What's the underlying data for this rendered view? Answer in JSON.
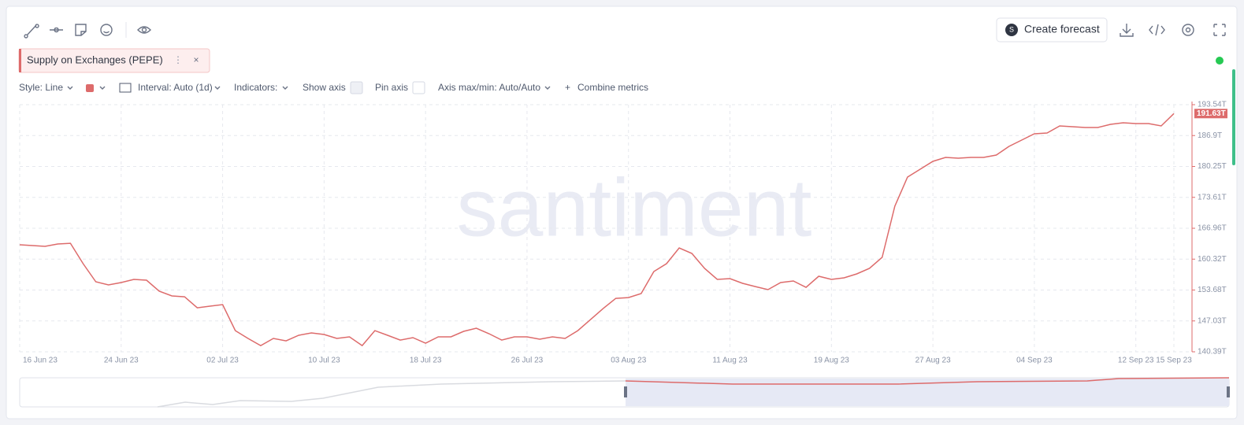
{
  "toolbar": {
    "create_forecast": "Create forecast"
  },
  "settings": {
    "style": "Style: Line",
    "interval": "Interval: Auto (1d)",
    "indicators": "Indicators:",
    "show_axis": "Show axis",
    "pin_axis": "Pin axis",
    "axis_range": "Axis max/min: Auto/Auto",
    "combine": "Combine metrics"
  },
  "watermark": "santiment",
  "chart_data": {
    "type": "line",
    "x": [
      "16 Jun 23",
      "17 Jun 23",
      "18 Jun 23",
      "19 Jun 23",
      "20 Jun 23",
      "21 Jun 23",
      "22 Jun 23",
      "23 Jun 23",
      "24 Jun 23",
      "25 Jun 23",
      "26 Jun 23",
      "27 Jun 23",
      "28 Jun 23",
      "29 Jun 23",
      "30 Jun 23",
      "01 Jul 23",
      "02 Jul 23",
      "03 Jul 23",
      "04 Jul 23",
      "05 Jul 23",
      "06 Jul 23",
      "07 Jul 23",
      "08 Jul 23",
      "09 Jul 23",
      "10 Jul 23",
      "11 Jul 23",
      "12 Jul 23",
      "13 Jul 23",
      "14 Jul 23",
      "15 Jul 23",
      "16 Jul 23",
      "17 Jul 23",
      "18 Jul 23",
      "19 Jul 23",
      "20 Jul 23",
      "21 Jul 23",
      "22 Jul 23",
      "23 Jul 23",
      "24 Jul 23",
      "25 Jul 23",
      "26 Jul 23",
      "27 Jul 23",
      "28 Jul 23",
      "29 Jul 23",
      "30 Jul 23",
      "31 Jul 23",
      "01 Aug 23",
      "02 Aug 23",
      "03 Aug 23",
      "04 Aug 23",
      "05 Aug 23",
      "06 Aug 23",
      "07 Aug 23",
      "08 Aug 23",
      "09 Aug 23",
      "10 Aug 23",
      "11 Aug 23",
      "12 Aug 23",
      "13 Aug 23",
      "14 Aug 23",
      "15 Aug 23",
      "16 Aug 23",
      "17 Aug 23",
      "18 Aug 23",
      "19 Aug 23",
      "20 Aug 23",
      "21 Aug 23",
      "22 Aug 23",
      "23 Aug 23",
      "24 Aug 23",
      "25 Aug 23",
      "26 Aug 23",
      "27 Aug 23",
      "28 Aug 23",
      "29 Aug 23",
      "30 Aug 23",
      "31 Aug 23",
      "01 Sep 23",
      "02 Sep 23",
      "03 Sep 23",
      "04 Sep 23",
      "05 Sep 23",
      "06 Sep 23",
      "07 Sep 23",
      "08 Sep 23",
      "09 Sep 23",
      "10 Sep 23",
      "11 Sep 23",
      "12 Sep 23",
      "13 Sep 23",
      "14 Sep 23",
      "15 Sep 23"
    ],
    "series": [
      {
        "name": "Supply on Exchanges (PEPE)",
        "color": "#dd6b6b",
        "values": [
          163.41,
          163.24,
          163.07,
          163.58,
          163.74,
          159.34,
          155.45,
          154.77,
          155.28,
          155.96,
          155.79,
          153.42,
          152.4,
          152.23,
          149.86,
          150.2,
          150.54,
          144.95,
          143.26,
          141.73,
          143.26,
          142.75,
          143.94,
          144.45,
          144.11,
          143.26,
          143.6,
          141.73,
          144.95,
          143.94,
          142.92,
          143.43,
          142.24,
          143.6,
          143.6,
          144.79,
          145.46,
          144.28,
          142.92,
          143.6,
          143.6,
          143.09,
          143.6,
          143.26,
          144.95,
          147.32,
          149.69,
          151.89,
          152.06,
          152.91,
          157.65,
          159.34,
          162.73,
          161.54,
          158.33,
          155.96,
          156.13,
          155.11,
          154.43,
          153.76,
          155.28,
          155.62,
          154.26,
          156.64,
          155.96,
          156.3,
          157.14,
          158.33,
          160.7,
          171.7,
          177.96,
          179.66,
          181.35,
          182.2,
          182.03,
          182.2,
          182.2,
          182.7,
          184.57,
          185.92,
          187.28,
          187.45,
          188.97,
          188.8,
          188.63,
          188.63,
          189.31,
          189.65,
          189.48,
          189.48,
          188.97,
          191.63
        ],
        "value_labels": [
          null,
          null,
          null,
          null,
          null,
          null,
          null,
          null,
          null,
          null,
          null,
          null,
          null,
          null,
          null,
          null,
          null,
          null,
          null,
          null,
          null,
          null,
          null,
          null,
          null,
          null,
          null,
          null,
          null,
          null,
          null,
          null,
          null,
          null,
          null,
          null,
          null,
          null,
          null,
          null,
          null,
          null,
          null,
          null,
          null,
          null,
          null,
          null,
          null,
          null,
          null,
          null,
          null,
          null,
          null,
          null,
          null,
          null,
          null,
          null,
          null,
          null,
          null,
          null,
          null,
          null,
          null,
          null,
          null,
          null,
          null,
          null,
          null,
          null,
          null,
          null,
          null,
          null,
          null,
          null,
          null,
          null,
          null,
          null,
          null,
          null,
          null,
          null,
          null,
          null,
          null,
          "191.63T"
        ]
      }
    ],
    "xticks": [
      "16 Jun 23",
      "24 Jun 23",
      "02 Jul 23",
      "10 Jul 23",
      "18 Jul 23",
      "26 Jul 23",
      "03 Aug 23",
      "11 Aug 23",
      "19 Aug 23",
      "27 Aug 23",
      "04 Sep 23",
      "12 Sep 23",
      "15 Sep 23"
    ],
    "ylim": [
      140.39,
      193.54
    ],
    "yticks": [
      {
        "value": 140.39,
        "label": "140.39T"
      },
      {
        "value": 147.03,
        "label": "147.03T"
      },
      {
        "value": 153.68,
        "label": "153.68T"
      },
      {
        "value": 160.32,
        "label": "160.32T"
      },
      {
        "value": 166.96,
        "label": "166.96T"
      },
      {
        "value": 173.61,
        "label": "173.61T"
      },
      {
        "value": 180.25,
        "label": "180.25T"
      },
      {
        "value": 186.9,
        "label": "186.9T"
      },
      {
        "value": 193.54,
        "label": "193.54T"
      }
    ],
    "grid": true
  }
}
